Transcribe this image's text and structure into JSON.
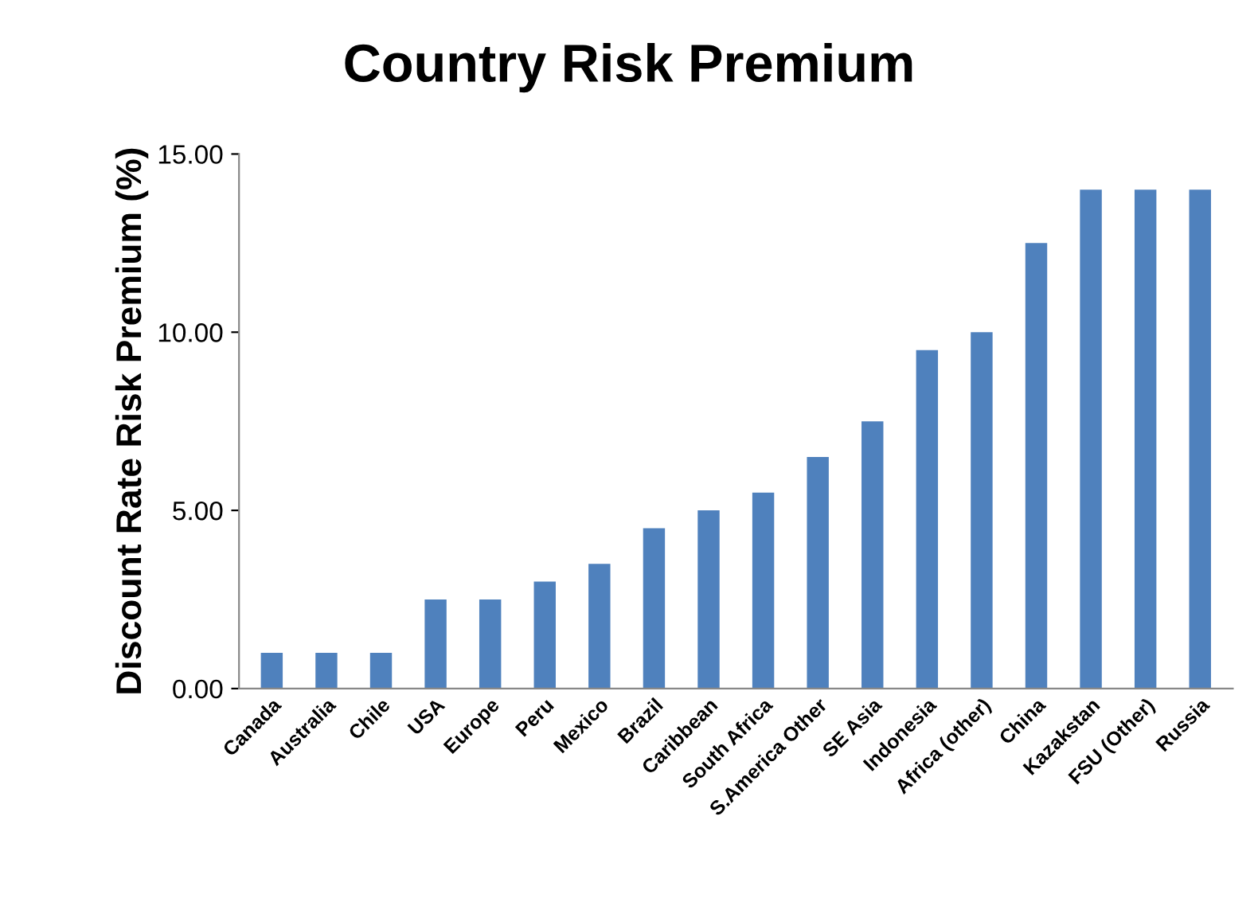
{
  "chart_data": {
    "type": "bar",
    "title": "Country Risk Premium",
    "ylabel": "Discount Rate Risk Premium (%)",
    "categories": [
      "Canada",
      "Australia",
      "Chile",
      "USA",
      "Europe",
      "Peru",
      "Mexico",
      "Brazil",
      "Caribbean",
      "South Africa",
      "S.America Other",
      "SE Asia",
      "Indonesia",
      "Africa (other)",
      "China",
      "Kazakstan",
      "FSU (Other)",
      "Russia"
    ],
    "values": [
      1.0,
      1.0,
      1.0,
      2.5,
      2.5,
      3.0,
      3.5,
      4.5,
      5.0,
      5.5,
      6.5,
      7.5,
      9.5,
      10.0,
      12.5,
      14.0,
      14.0,
      14.0
    ],
    "color": "#4f81bd",
    "ylim": [
      0,
      15
    ],
    "yticks": [
      {
        "value": 0,
        "label": "0.00"
      },
      {
        "value": 5,
        "label": "5.00"
      },
      {
        "value": 10,
        "label": "10.00"
      },
      {
        "value": 15,
        "label": "15.00"
      }
    ],
    "grid": false,
    "legend": false
  }
}
